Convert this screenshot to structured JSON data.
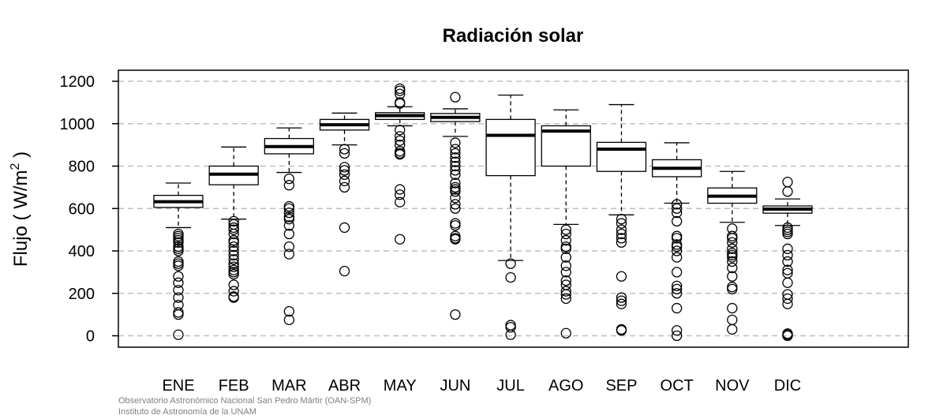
{
  "chart_data": {
    "type": "box",
    "title": "Radiación solar",
    "ylabel": "Flujo ( W/m",
    "ylabel_sup": "2",
    "ylabel_close": " )",
    "ylim": [
      -55,
      1250
    ],
    "yticks": [
      0,
      200,
      400,
      600,
      800,
      1000,
      1200
    ],
    "grid": "horizontal dashed",
    "categories": [
      "ENE",
      "FEB",
      "MAR",
      "ABR",
      "MAY",
      "JUN",
      "JUL",
      "AGO",
      "SEP",
      "OCT",
      "NOV",
      "DIC"
    ],
    "boxes": [
      {
        "q1": 605,
        "median": 632,
        "q3": 662,
        "whisker_low": 510,
        "whisker_high": 720,
        "outliers": [
          480,
          470,
          460,
          450,
          440,
          420,
          410,
          400,
          350,
          340,
          330,
          280,
          250,
          215,
          180,
          145,
          110,
          100,
          5
        ]
      },
      {
        "q1": 712,
        "median": 762,
        "q3": 800,
        "whisker_low": 550,
        "whisker_high": 890,
        "outliers": [
          540,
          525,
          510,
          500,
          480,
          450,
          440,
          420,
          400,
          380,
          360,
          340,
          325,
          310,
          300,
          290,
          240,
          210,
          185,
          180
        ]
      },
      {
        "q1": 858,
        "median": 892,
        "q3": 930,
        "whisker_low": 770,
        "whisker_high": 980,
        "outliers": [
          740,
          710,
          610,
          600,
          580,
          560,
          550,
          520,
          480,
          420,
          385,
          115,
          75
        ]
      },
      {
        "q1": 970,
        "median": 995,
        "q3": 1020,
        "whisker_low": 900,
        "whisker_high": 1050,
        "outliers": [
          880,
          860,
          795,
          780,
          760,
          730,
          700,
          510,
          305
        ]
      },
      {
        "q1": 1020,
        "median": 1038,
        "q3": 1052,
        "whisker_low": 990,
        "whisker_high": 1080,
        "outliers": [
          1165,
          1155,
          1140,
          1100,
          1095,
          970,
          940,
          920,
          900,
          870,
          860,
          855,
          690,
          665,
          630,
          455
        ]
      },
      {
        "q1": 1010,
        "median": 1030,
        "q3": 1048,
        "whisker_low": 940,
        "whisker_high": 1070,
        "outliers": [
          1125,
          910,
          880,
          860,
          840,
          820,
          800,
          780,
          760,
          720,
          700,
          690,
          680,
          650,
          620,
          600,
          530,
          520,
          470,
          460,
          455,
          100
        ]
      },
      {
        "q1": 755,
        "median": 945,
        "q3": 1020,
        "whisker_low": 355,
        "whisker_high": 1135,
        "outliers": [
          340,
          275,
          50,
          40,
          5
        ]
      },
      {
        "q1": 800,
        "median": 965,
        "q3": 990,
        "whisker_low": 525,
        "whisker_high": 1065,
        "outliers": [
          500,
          480,
          450,
          420,
          410,
          370,
          330,
          300,
          260,
          240,
          210,
          195,
          175,
          12
        ]
      },
      {
        "q1": 775,
        "median": 880,
        "q3": 912,
        "whisker_low": 570,
        "whisker_high": 1090,
        "outliers": [
          550,
          530,
          500,
          480,
          460,
          440,
          280,
          180,
          165,
          150,
          30,
          25
        ]
      },
      {
        "q1": 750,
        "median": 790,
        "q3": 830,
        "whisker_low": 625,
        "whisker_high": 910,
        "outliers": [
          620,
          600,
          580,
          540,
          470,
          460,
          430,
          420,
          400,
          370,
          300,
          235,
          220,
          200,
          130,
          25,
          0
        ]
      },
      {
        "q1": 625,
        "median": 658,
        "q3": 697,
        "whisker_low": 535,
        "whisker_high": 775,
        "outliers": [
          505,
          470,
          460,
          440,
          410,
          390,
          380,
          370,
          350,
          320,
          280,
          230,
          220,
          130,
          75,
          30
        ]
      },
      {
        "q1": 578,
        "median": 597,
        "q3": 612,
        "whisker_low": 520,
        "whisker_high": 645,
        "outliers": [
          725,
          680,
          510,
          500,
          490,
          480,
          410,
          380,
          350,
          310,
          295,
          250,
          195,
          175,
          150,
          10,
          5,
          0
        ]
      }
    ]
  },
  "footer": {
    "line1": "Observatorio Astronómico Nacional San Pedro Mártir (OAN-SPM)",
    "line2": "Instituto de Astronomía de la UNAM"
  }
}
